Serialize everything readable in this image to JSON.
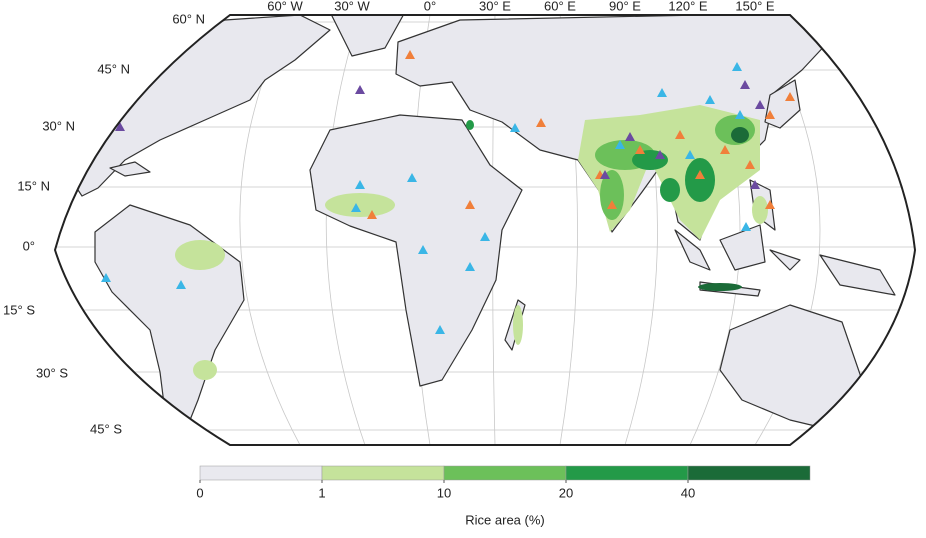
{
  "map": {
    "lat_labels": [
      "60° N",
      "45° N",
      "30° N",
      "15° N",
      "0°",
      "15° S",
      "30° S",
      "45° S"
    ],
    "lon_labels": [
      "60° W",
      "30° W",
      "0°",
      "30° E",
      "60° E",
      "90° E",
      "120° E",
      "150° E"
    ]
  },
  "legend": {
    "title": "Rice area (%)",
    "ticks": [
      0,
      1,
      10,
      20,
      40
    ],
    "colors": [
      "#e9e9ef",
      "#c5e39b",
      "#6cc05a",
      "#239a48",
      "#1b6b38"
    ]
  }
}
